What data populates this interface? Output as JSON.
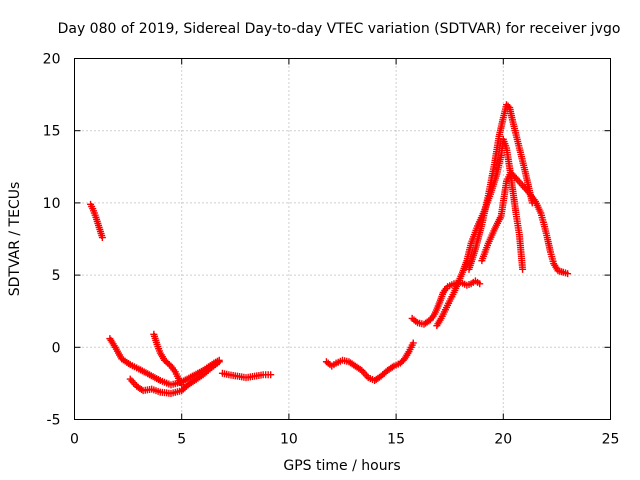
{
  "chart_data": {
    "type": "scatter",
    "title": "Day 080 of 2019, Sidereal Day-to-day VTEC variation (SDTVAR) for receiver jvgo",
    "xlabel": "GPS time / hours",
    "ylabel": "SDTVAR / TECUs",
    "xlim": [
      0,
      25
    ],
    "ylim": [
      -5,
      20
    ],
    "xticks": [
      0,
      5,
      10,
      15,
      20,
      25
    ],
    "yticks": [
      -5,
      0,
      5,
      10,
      15,
      20
    ],
    "xtick_labels": [
      "0",
      "5",
      "10",
      "15",
      "20",
      "25"
    ],
    "ytick_labels": [
      "-5",
      "0",
      "5",
      "10",
      "15",
      "20"
    ],
    "grid": true,
    "marker": "+",
    "series": [
      {
        "name": "SDTVAR",
        "color": "#ff0000",
        "segments": [
          [
            [
              0.75,
              9.9
            ],
            [
              0.85,
              9.6
            ],
            [
              1.0,
              9.0
            ],
            [
              1.15,
              8.3
            ],
            [
              1.3,
              7.6
            ]
          ],
          [
            [
              1.65,
              0.6
            ],
            [
              1.9,
              0.0
            ],
            [
              2.2,
              -0.8
            ],
            [
              2.6,
              -1.2
            ],
            [
              3.0,
              -1.5
            ],
            [
              3.5,
              -1.9
            ],
            [
              4.0,
              -2.3
            ],
            [
              4.5,
              -2.6
            ],
            [
              5.0,
              -2.4
            ],
            [
              5.5,
              -2.0
            ],
            [
              6.0,
              -1.6
            ],
            [
              6.5,
              -1.1
            ],
            [
              6.75,
              -0.9
            ]
          ],
          [
            [
              2.6,
              -2.2
            ],
            [
              2.9,
              -2.7
            ],
            [
              3.2,
              -3.0
            ],
            [
              3.6,
              -2.9
            ],
            [
              4.0,
              -3.1
            ],
            [
              4.5,
              -3.2
            ],
            [
              5.0,
              -3.0
            ],
            [
              5.3,
              -2.6
            ],
            [
              5.6,
              -2.3
            ],
            [
              6.0,
              -1.9
            ],
            [
              6.4,
              -1.4
            ],
            [
              6.75,
              -1.0
            ]
          ],
          [
            [
              3.7,
              0.9
            ],
            [
              3.85,
              0.2
            ],
            [
              4.0,
              -0.4
            ],
            [
              4.2,
              -0.9
            ],
            [
              4.5,
              -1.3
            ],
            [
              4.7,
              -1.7
            ],
            [
              4.9,
              -2.3
            ],
            [
              5.0,
              -2.6
            ]
          ],
          [
            [
              6.9,
              -1.8
            ],
            [
              7.2,
              -1.9
            ],
            [
              7.6,
              -2.0
            ],
            [
              8.0,
              -2.1
            ],
            [
              8.4,
              -2.0
            ],
            [
              8.8,
              -1.9
            ],
            [
              9.15,
              -1.9
            ]
          ],
          [
            [
              11.75,
              -1.0
            ],
            [
              12.0,
              -1.3
            ],
            [
              12.2,
              -1.1
            ],
            [
              12.5,
              -0.9
            ],
            [
              12.8,
              -1.0
            ],
            [
              13.1,
              -1.3
            ],
            [
              13.4,
              -1.6
            ],
            [
              13.7,
              -2.1
            ],
            [
              14.0,
              -2.3
            ],
            [
              14.3,
              -2.0
            ],
            [
              14.6,
              -1.6
            ],
            [
              14.9,
              -1.3
            ],
            [
              15.2,
              -1.1
            ],
            [
              15.4,
              -0.8
            ],
            [
              15.6,
              -0.3
            ],
            [
              15.8,
              0.3
            ]
          ],
          [
            [
              15.75,
              2.0
            ],
            [
              16.0,
              1.7
            ],
            [
              16.3,
              1.6
            ],
            [
              16.6,
              1.9
            ],
            [
              16.8,
              2.3
            ],
            [
              17.0,
              3.0
            ],
            [
              17.2,
              3.8
            ],
            [
              17.4,
              4.2
            ],
            [
              17.7,
              4.4
            ],
            [
              18.0,
              4.5
            ],
            [
              18.3,
              4.3
            ],
            [
              18.5,
              4.4
            ],
            [
              18.7,
              4.6
            ],
            [
              18.9,
              4.4
            ]
          ],
          [
            [
              16.9,
              1.5
            ],
            [
              17.1,
              2.0
            ],
            [
              17.3,
              2.6
            ],
            [
              17.5,
              3.2
            ],
            [
              17.7,
              3.8
            ],
            [
              17.9,
              4.5
            ],
            [
              18.1,
              5.2
            ],
            [
              18.3,
              6.0
            ],
            [
              18.5,
              7.2
            ],
            [
              18.8,
              8.4
            ],
            [
              19.1,
              9.4
            ],
            [
              19.4,
              10.6
            ],
            [
              19.7,
              12.0
            ],
            [
              19.9,
              13.3
            ],
            [
              20.0,
              14.4
            ],
            [
              20.15,
              13.8
            ],
            [
              20.3,
              12.4
            ],
            [
              20.45,
              10.8
            ],
            [
              20.6,
              9.2
            ],
            [
              20.75,
              7.8
            ],
            [
              20.9,
              5.4
            ]
          ],
          [
            [
              18.4,
              5.4
            ],
            [
              18.7,
              6.8
            ],
            [
              19.0,
              8.5
            ],
            [
              19.3,
              10.5
            ],
            [
              19.6,
              12.8
            ],
            [
              19.8,
              14.6
            ],
            [
              20.0,
              15.9
            ],
            [
              20.15,
              16.8
            ],
            [
              20.3,
              16.6
            ],
            [
              20.4,
              15.9
            ],
            [
              20.6,
              14.7
            ],
            [
              20.8,
              13.5
            ],
            [
              21.0,
              12.3
            ],
            [
              21.2,
              11.0
            ],
            [
              21.35,
              10.0
            ]
          ],
          [
            [
              19.0,
              6.0
            ],
            [
              19.3,
              7.2
            ],
            [
              19.6,
              8.2
            ],
            [
              19.9,
              9.1
            ],
            [
              20.15,
              11.5
            ],
            [
              20.35,
              12.1
            ],
            [
              20.6,
              11.7
            ],
            [
              20.9,
              11.2
            ],
            [
              21.2,
              10.7
            ],
            [
              21.5,
              10.1
            ],
            [
              21.75,
              9.3
            ],
            [
              21.9,
              8.5
            ],
            [
              22.05,
              7.6
            ],
            [
              22.2,
              6.6
            ],
            [
              22.35,
              5.8
            ],
            [
              22.55,
              5.3
            ],
            [
              22.8,
              5.2
            ],
            [
              23.0,
              5.1
            ]
          ]
        ]
      }
    ]
  }
}
